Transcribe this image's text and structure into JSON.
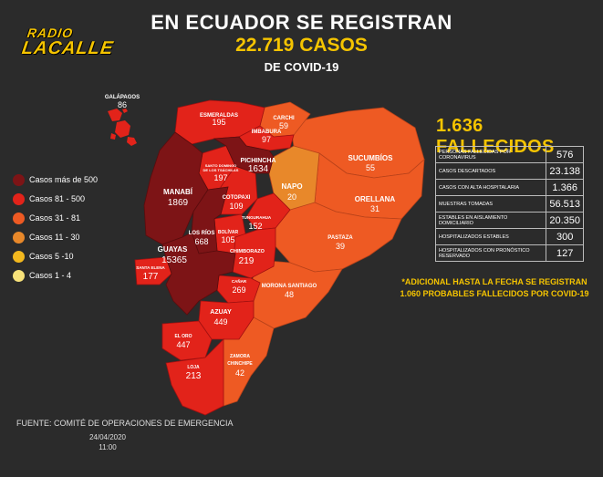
{
  "header": {
    "logo_top": "RADIO",
    "logo_bottom": "LACALLE",
    "title_line1": "EN ECUADOR SE REGISTRAN",
    "title_line2": "22.719 CASOS",
    "title_line3": "DE COVID-19"
  },
  "legend": {
    "items": [
      {
        "label": "Casos más de 500",
        "color": "#7d1416"
      },
      {
        "label": "Casos  81 - 500",
        "color": "#e2231a"
      },
      {
        "label": "Casos 31 - 81",
        "color": "#ee5a23"
      },
      {
        "label": "Casos 11 - 30",
        "color": "#e8882a"
      },
      {
        "label": "Casos 5 -10",
        "color": "#f3b81e"
      },
      {
        "label": "Casos 1 - 4",
        "color": "#f8e27a"
      }
    ]
  },
  "provinces": {
    "galapagos": {
      "name": "GALÁPAGOS",
      "value": "86"
    },
    "esmeraldas": {
      "name": "ESMERALDAS",
      "value": "195"
    },
    "carchi": {
      "name": "CARCHI",
      "value": "59"
    },
    "imbabura": {
      "name": "IMBABURA",
      "value": "97"
    },
    "pichincha": {
      "name": "PICHINCHA",
      "value": "1634"
    },
    "santo_domingo": {
      "name_l1": "SANTO DOMINGO",
      "name_l2": "DE LOS TSÁCHILAS",
      "value": "197"
    },
    "sucumbios": {
      "name": "SUCUMBÍOS",
      "value": "55"
    },
    "napo": {
      "name": "NAPO",
      "value": "20"
    },
    "orellana": {
      "name": "ORELLANA",
      "value": "31"
    },
    "manabi": {
      "name": "MANABÍ",
      "value": "1869"
    },
    "cotopaxi": {
      "name": "COTOPAXI",
      "value": "109"
    },
    "los_rios": {
      "name": "LOS RÍOS",
      "value": "668"
    },
    "tungurahua": {
      "name": "TUNGURAHUA",
      "value": "152"
    },
    "bolivar": {
      "name": "BOLÍVAR",
      "value": "105"
    },
    "pastaza": {
      "name": "PASTAZA",
      "value": "39"
    },
    "chimborazo": {
      "name": "CHIMBORAZO",
      "value": "219"
    },
    "guayas": {
      "name": "GUAYAS",
      "value": "15365"
    },
    "santa_elena": {
      "name": "SANTA ELENA",
      "value": "177"
    },
    "canar": {
      "name": "CAÑAR",
      "value": "269"
    },
    "morona": {
      "name": "MORONA SANTIAGO",
      "value": "48"
    },
    "azuay": {
      "name": "AZUAY",
      "value": "449"
    },
    "el_oro": {
      "name": "EL ORO",
      "value": "447"
    },
    "zamora": {
      "name_l1": "ZAMORA",
      "name_l2": "CHINCHIPE",
      "value": "42"
    },
    "loja": {
      "name": "LOJA",
      "value": "213"
    }
  },
  "deaths": {
    "title": "1.636 FALLECIDOS"
  },
  "stats": [
    {
      "label": "PERSONAS FALLECIDAS POR CORONAVIRUS",
      "value": "576"
    },
    {
      "label": "CASOS DESCARTADOS",
      "value": "23.138"
    },
    {
      "label": "CASOS CON ALTA HOSPITALARIA",
      "value": "1.366"
    },
    {
      "label": "MUESTRAS TOMADAS",
      "value": "56.513"
    },
    {
      "label": "ESTABLES EN AISLAMIENTO DOMICILIARIO",
      "value": "20.350"
    },
    {
      "label": "HOSPITALIZADOS ESTABLES",
      "value": "300"
    },
    {
      "label": "HOSPITALIZADOS CON  PRONÓSTICO RESERVADO",
      "value": "127"
    }
  ],
  "note": {
    "line1": "*ADICIONAL HASTA LA FECHA SE REGISTRAN",
    "line2": "1.060 PROBABLES FALLECIDOS POR COVID-19"
  },
  "footer": {
    "source": "FUENTE: COMITÉ DE OPERACIONES DE EMERGENCIA",
    "date": "24/04/2020",
    "time": "11:00"
  }
}
